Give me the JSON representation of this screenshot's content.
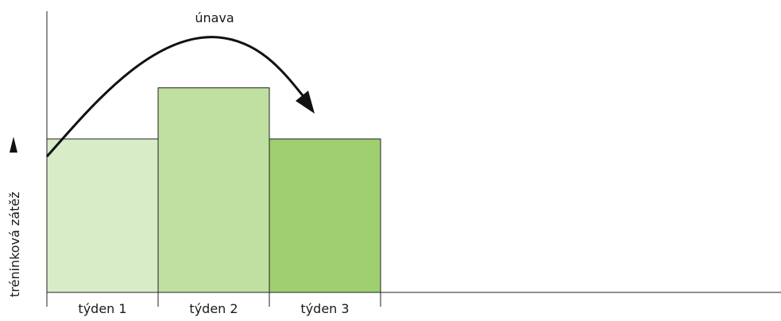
{
  "chart_data": {
    "type": "bar",
    "categories": [
      "týden 1",
      "týden 2",
      "týden 3"
    ],
    "values": [
      3,
      4,
      3
    ],
    "colors": [
      "#d8ecc8",
      "#bfe0a0",
      "#9fcf70"
    ],
    "ylabel": "tréninková zátěž",
    "ylim": [
      0,
      5.5
    ],
    "grid": false,
    "annotation": {
      "label": "únava",
      "shape": "curved-arrow"
    }
  }
}
